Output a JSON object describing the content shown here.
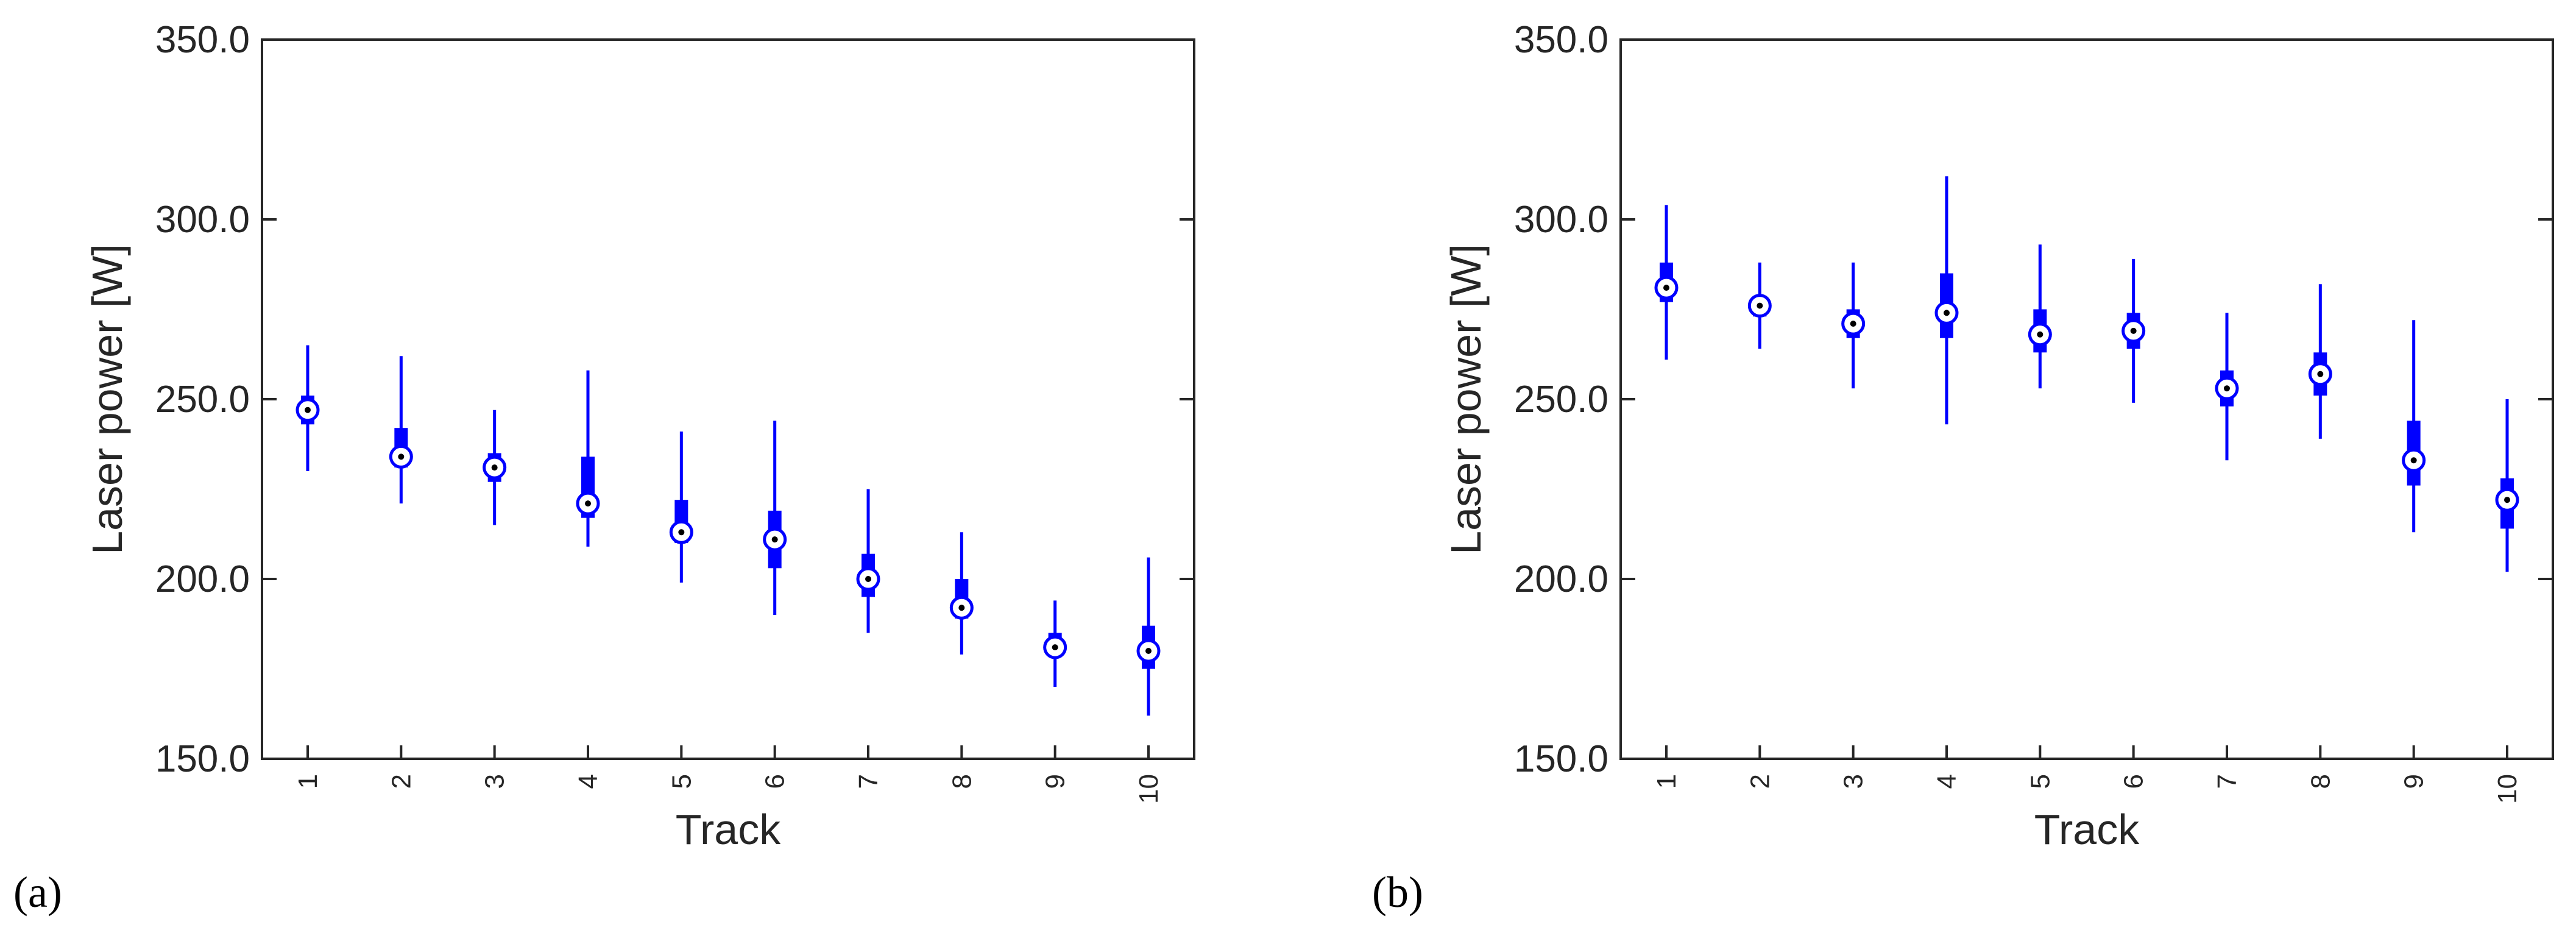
{
  "colors": {
    "marker": "#0000ff",
    "axis": "#262626",
    "background": "#ffffff"
  },
  "chart_data": [
    {
      "type": "boxplot",
      "panel_label": "(a)",
      "xlabel": "Track",
      "ylabel": "Laser power [W]",
      "ylim": [
        150,
        350
      ],
      "yticks": [
        "150.0",
        "200.0",
        "250.0",
        "300.0",
        "350.0"
      ],
      "categories": [
        "1",
        "2",
        "3",
        "4",
        "5",
        "6",
        "7",
        "8",
        "9",
        "10"
      ],
      "median": [
        247,
        234,
        231,
        221,
        213,
        211,
        200,
        192,
        181,
        180
      ],
      "q1": [
        243,
        231,
        227,
        217,
        210,
        203,
        195,
        189,
        179,
        175
      ],
      "q3": [
        251,
        242,
        235,
        234,
        222,
        219,
        207,
        200,
        185,
        187
      ],
      "whisker_low": [
        230,
        221,
        215,
        209,
        199,
        190,
        185,
        179,
        170,
        162
      ],
      "whisker_high": [
        265,
        262,
        247,
        258,
        241,
        244,
        225,
        213,
        194,
        206
      ]
    },
    {
      "type": "boxplot",
      "panel_label": "(b)",
      "xlabel": "Track",
      "ylabel": "Laser power [W]",
      "ylim": [
        150,
        350
      ],
      "yticks": [
        "150.0",
        "200.0",
        "250.0",
        "300.0",
        "350.0"
      ],
      "categories": [
        "1",
        "2",
        "3",
        "4",
        "5",
        "6",
        "7",
        "8",
        "9",
        "10"
      ],
      "median": [
        281,
        276,
        271,
        274,
        268,
        269,
        253,
        257,
        233,
        222
      ],
      "q1": [
        277,
        273,
        267,
        267,
        263,
        264,
        248,
        251,
        226,
        214
      ],
      "q3": [
        288,
        278,
        275,
        285,
        275,
        274,
        258,
        263,
        244,
        228
      ],
      "whisker_low": [
        261,
        264,
        253,
        243,
        253,
        249,
        233,
        239,
        213,
        202
      ],
      "whisker_high": [
        304,
        288,
        288,
        312,
        293,
        289,
        274,
        282,
        272,
        250
      ]
    }
  ]
}
